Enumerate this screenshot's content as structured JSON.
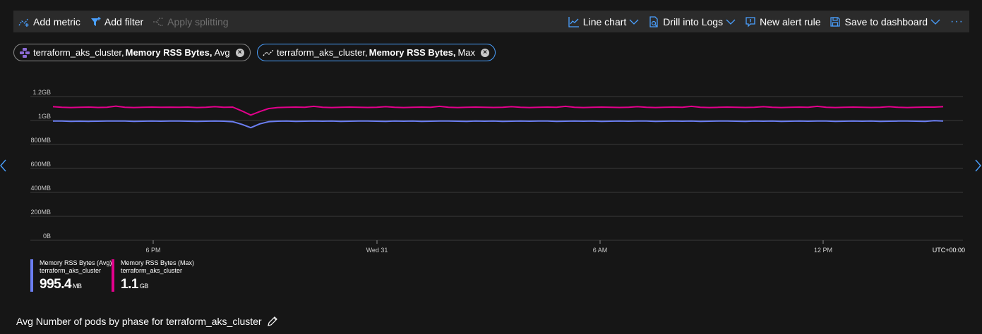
{
  "toolbar": {
    "add_metric": "Add metric",
    "add_filter": "Add filter",
    "apply_splitting": "Apply splitting",
    "line_chart": "Line chart",
    "drill_logs": "Drill into Logs",
    "new_alert": "New alert rule",
    "save_dashboard": "Save to dashboard",
    "more": "···"
  },
  "pills": [
    {
      "resource": "terraform_aks_cluster,",
      "metric": "Memory RSS Bytes,",
      "agg": "Avg",
      "icon": "cluster-icon"
    },
    {
      "resource": "terraform_aks_cluster,",
      "metric": "Memory RSS Bytes,",
      "agg": "Max",
      "icon": "metric-line-icon"
    }
  ],
  "chart_data": {
    "type": "line",
    "y_ticks": [
      "0B",
      "200MB",
      "400MB",
      "600MB",
      "800MB",
      "1GB",
      "1.2GB"
    ],
    "y_tick_values_mb": [
      0,
      200,
      400,
      600,
      800,
      1000,
      1200
    ],
    "ylim_mb": [
      0,
      1200
    ],
    "x_ticks": [
      "6 PM",
      "Wed 31",
      "6 AM",
      "12 PM"
    ],
    "timezone": "UTC+00:00",
    "grid": true,
    "series": [
      {
        "name": "Memory RSS Bytes (Avg)",
        "resource": "terraform_aks_cluster",
        "color": "#6b7ef2",
        "points_mb": [
          995,
          995,
          993,
          994,
          993,
          994,
          995,
          996,
          995,
          993,
          994,
          995,
          994,
          995,
          996,
          994,
          993,
          994,
          995,
          994,
          990,
          968,
          940,
          972,
          990,
          994,
          995,
          993,
          994,
          995,
          994,
          995,
          993,
          994,
          996,
          995,
          994,
          993,
          995,
          994,
          995,
          993,
          994,
          995,
          996,
          994,
          993,
          995,
          994,
          995,
          993,
          994,
          995,
          994,
          996,
          995,
          993,
          994,
          995,
          994,
          995,
          993,
          994,
          995,
          994,
          996,
          995,
          993,
          994,
          995,
          994,
          995,
          993,
          994,
          995,
          996,
          994,
          993,
          995,
          994,
          995,
          993,
          994,
          995,
          994,
          996,
          995,
          993,
          994,
          995,
          994,
          995,
          993,
          994,
          995,
          996,
          994,
          993,
          998,
          995
        ]
      },
      {
        "name": "Memory RSS Bytes (Max)",
        "resource": "terraform_aks_cluster",
        "color": "#e3008c",
        "points_mb": [
          1115,
          1110,
          1108,
          1110,
          1112,
          1109,
          1110,
          1120,
          1110,
          1108,
          1110,
          1112,
          1110,
          1111,
          1110,
          1112,
          1108,
          1110,
          1115,
          1110,
          1112,
          1080,
          1045,
          1075,
          1100,
          1108,
          1110,
          1112,
          1110,
          1118,
          1110,
          1108,
          1110,
          1112,
          1110,
          1109,
          1110,
          1115,
          1110,
          1108,
          1110,
          1112,
          1110,
          1118,
          1110,
          1108,
          1110,
          1112,
          1110,
          1109,
          1110,
          1115,
          1110,
          1108,
          1110,
          1112,
          1110,
          1118,
          1110,
          1108,
          1110,
          1112,
          1110,
          1109,
          1110,
          1115,
          1110,
          1108,
          1110,
          1112,
          1110,
          1118,
          1110,
          1108,
          1110,
          1112,
          1110,
          1109,
          1110,
          1115,
          1110,
          1108,
          1110,
          1112,
          1110,
          1118,
          1110,
          1108,
          1110,
          1112,
          1110,
          1109,
          1110,
          1115,
          1110,
          1108,
          1110,
          1112,
          1112,
          1115
        ]
      }
    ]
  },
  "legend": [
    {
      "line1": "Memory RSS Bytes (Avg)",
      "line2": "terraform_aks_cluster",
      "value": "995.4",
      "unit": "MB",
      "color": "#6b7ef2"
    },
    {
      "line1": "Memory RSS Bytes (Max)",
      "line2": "terraform_aks_cluster",
      "value": "1.1",
      "unit": "GB",
      "color": "#e3008c"
    }
  ],
  "next_chart": {
    "title": "Avg Number of pods by phase for terraform_aks_cluster"
  }
}
